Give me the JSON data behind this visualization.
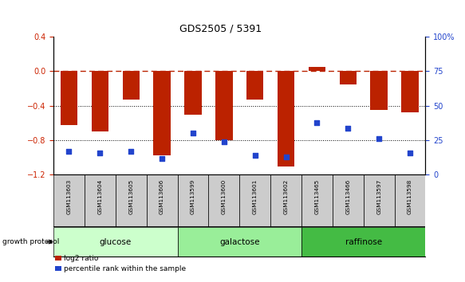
{
  "title": "GDS2505 / 5391",
  "samples": [
    "GSM113603",
    "GSM113604",
    "GSM113605",
    "GSM113606",
    "GSM113599",
    "GSM113600",
    "GSM113601",
    "GSM113602",
    "GSM113465",
    "GSM113466",
    "GSM113597",
    "GSM113598"
  ],
  "log2_ratio": [
    -0.62,
    -0.7,
    -0.33,
    -0.97,
    -0.5,
    -0.8,
    -0.33,
    -1.1,
    0.05,
    -0.15,
    -0.45,
    -0.48
  ],
  "percentile_rank": [
    17,
    16,
    17,
    12,
    30,
    24,
    14,
    13,
    38,
    34,
    26,
    16
  ],
  "groups": [
    {
      "label": "glucose",
      "start": 0,
      "end": 4,
      "color": "#ccffcc"
    },
    {
      "label": "galactose",
      "start": 4,
      "end": 8,
      "color": "#99ee99"
    },
    {
      "label": "raffinose",
      "start": 8,
      "end": 12,
      "color": "#44bb44"
    }
  ],
  "bar_color": "#bb2200",
  "dot_color": "#2244cc",
  "ylim_left": [
    -1.2,
    0.4
  ],
  "ylim_right": [
    0,
    100
  ],
  "yticks_left": [
    -1.2,
    -0.8,
    -0.4,
    0.0,
    0.4
  ],
  "yticks_right": [
    0,
    25,
    50,
    75,
    100
  ],
  "hline_y": 0.0,
  "dotted_lines": [
    -0.4,
    -0.8
  ],
  "bar_width": 0.55,
  "sample_bg_color": "#cccccc",
  "left_ycolor": "#cc2200",
  "right_ycolor": "#2244cc",
  "legend_red": "log2 ratio",
  "legend_blue": "percentile rank within the sample",
  "growth_protocol_label": "growth protocol"
}
